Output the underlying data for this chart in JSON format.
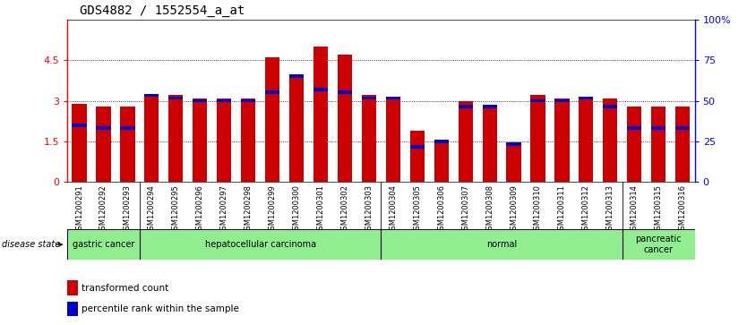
{
  "title": "GDS4882 / 1552554_a_at",
  "samples": [
    "GSM1200291",
    "GSM1200292",
    "GSM1200293",
    "GSM1200294",
    "GSM1200295",
    "GSM1200296",
    "GSM1200297",
    "GSM1200298",
    "GSM1200299",
    "GSM1200300",
    "GSM1200301",
    "GSM1200302",
    "GSM1200303",
    "GSM1200304",
    "GSM1200305",
    "GSM1200306",
    "GSM1200307",
    "GSM1200308",
    "GSM1200309",
    "GSM1200310",
    "GSM1200311",
    "GSM1200312",
    "GSM1200313",
    "GSM1200314",
    "GSM1200315",
    "GSM1200316"
  ],
  "red_values": [
    2.9,
    2.8,
    2.8,
    3.2,
    3.2,
    3.1,
    3.1,
    3.1,
    4.6,
    3.9,
    5.0,
    4.7,
    3.2,
    3.1,
    1.9,
    1.5,
    3.0,
    2.8,
    1.4,
    3.2,
    3.1,
    3.1,
    3.1,
    2.8,
    2.8,
    2.8
  ],
  "blue_values": [
    2.1,
    2.0,
    2.0,
    3.2,
    3.1,
    3.0,
    3.0,
    3.0,
    3.3,
    3.9,
    3.4,
    3.3,
    3.1,
    3.1,
    1.3,
    1.5,
    2.8,
    2.8,
    1.4,
    3.0,
    3.0,
    3.1,
    2.8,
    2.0,
    2.0,
    2.0
  ],
  "disease_groups": [
    {
      "label": "gastric cancer",
      "start": 0,
      "end": 3
    },
    {
      "label": "hepatocellular carcinoma",
      "start": 3,
      "end": 13
    },
    {
      "label": "normal",
      "start": 13,
      "end": 23
    },
    {
      "label": "pancreatic\ncancer",
      "start": 23,
      "end": 26
    }
  ],
  "group_separators": [
    3,
    13,
    23
  ],
  "ylim_left": [
    0,
    6
  ],
  "ylim_right": [
    0,
    100
  ],
  "yticks_left": [
    0,
    1.5,
    3.0,
    4.5
  ],
  "ytick_left_labels": [
    "0",
    "1.5",
    "3",
    "4.5"
  ],
  "yticks_right": [
    0,
    25,
    50,
    75,
    100
  ],
  "ytick_right_labels": [
    "0",
    "25",
    "50",
    "75",
    "100%"
  ],
  "bar_color": "#cc0000",
  "blue_color": "#0000cc",
  "group_color": "#90ee90",
  "tick_bg": "#c8c8c8",
  "bar_width": 0.6,
  "title_fontsize": 10,
  "tick_fontsize": 6.5,
  "label_fontsize": 7.5
}
